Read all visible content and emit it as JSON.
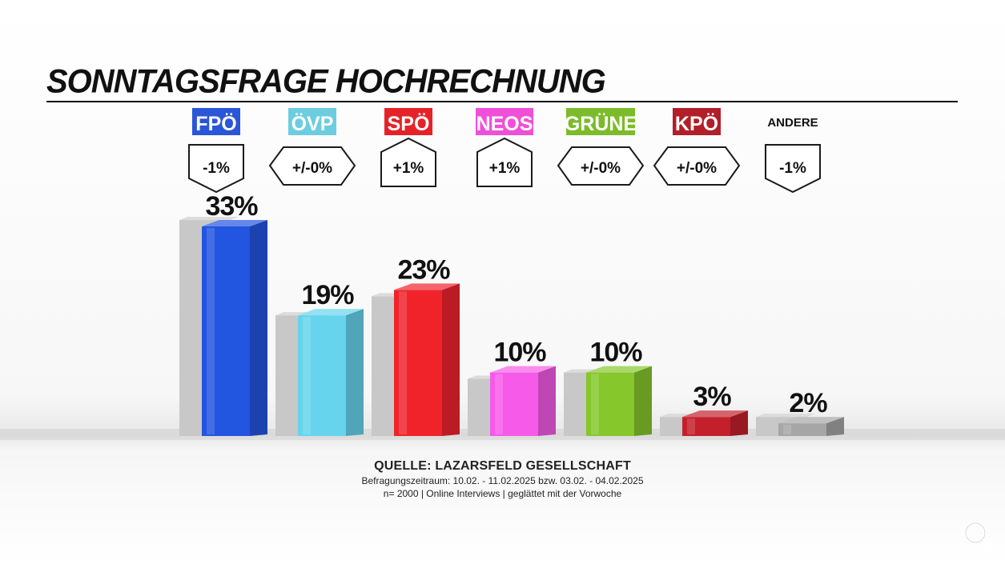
{
  "title": "SONNTAGSFRAGE HOCHRECHNUNG",
  "chart_data": {
    "type": "bar",
    "title": "SONNTAGSFRAGE HOCHRECHNUNG",
    "ylim": [
      0,
      35
    ],
    "value_suffix": "%",
    "categories": [
      "FPÖ",
      "ÖVP",
      "SPÖ",
      "NEOS",
      "GRÜNE",
      "KPÖ",
      "ANDERE"
    ],
    "series": [
      {
        "values": [
          33,
          19,
          23,
          10,
          10,
          3,
          2
        ]
      }
    ],
    "previous_values": [
      34,
      19,
      22,
      9,
      10,
      3,
      3
    ],
    "changes": [
      {
        "label": "-1%",
        "direction": "down"
      },
      {
        "label": "+/-0%",
        "direction": "same"
      },
      {
        "label": "+1%",
        "direction": "up"
      },
      {
        "label": "+1%",
        "direction": "up"
      },
      {
        "label": "+/-0%",
        "direction": "same"
      },
      {
        "label": "+/-0%",
        "direction": "same"
      },
      {
        "label": "-1%",
        "direction": "down"
      }
    ],
    "colors": [
      "#2255e0",
      "#66d4ec",
      "#f0232b",
      "#f55ae8",
      "#86c72b",
      "#c4202c",
      "#a6a6a6"
    ],
    "label_colors": [
      "#2a56d8",
      "#6dcde0",
      "#e62229",
      "#f04fd8",
      "#7cbb2a",
      "#b21f28",
      "none"
    ],
    "legend": "top",
    "grid": false
  },
  "source": {
    "title": "QUELLE: LAZARSFELD GESELLSCHAFT",
    "line1": "Befragungszeitraum:  10.02. - 11.02.2025  bzw. 03.02. - 04.02.2025",
    "line2": "n= 2000 | Online Interviews | geglättet mit der Vorwoche"
  },
  "icons": {
    "search": "search-icon"
  }
}
